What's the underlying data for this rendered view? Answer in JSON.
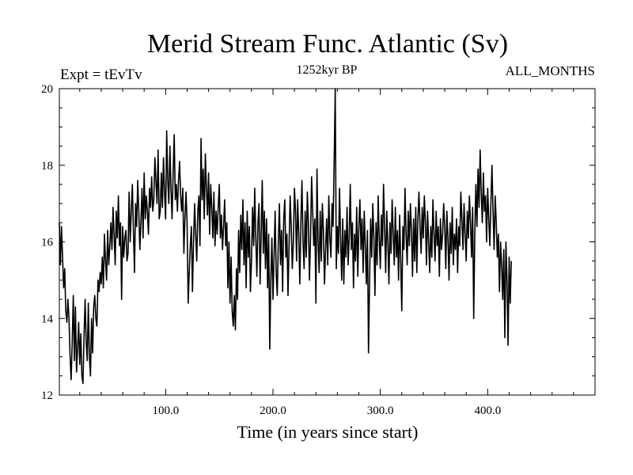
{
  "chart_data": {
    "type": "line",
    "title": "Merid Stream Func. Atlantic (Sv)",
    "subtitle_left": "Expt = tEvTv",
    "subtitle_center": "1252kyr BP",
    "subtitle_right": "ALL_MONTHS",
    "xlabel": "Time (in years since start)",
    "ylabel": "",
    "xlim": [
      1,
      500
    ],
    "ylim": [
      12,
      20
    ],
    "x_ticks": [
      100,
      200,
      300,
      400
    ],
    "x_tick_labels": [
      "100.0",
      "200.0",
      "300.0",
      "400.0"
    ],
    "y_ticks": [
      12,
      14,
      16,
      18,
      20
    ],
    "y_tick_labels": [
      "12",
      "14",
      "16",
      "18",
      "20"
    ],
    "grid": false,
    "series": [
      {
        "name": "Merid Stream Func. Atlantic",
        "x_start": 1,
        "x_step": 1,
        "values": [
          16.5,
          15.4,
          16.4,
          15.6,
          14.8,
          15.3,
          14.2,
          13.9,
          14.5,
          14.0,
          13.0,
          12.4,
          13.4,
          14.6,
          12.9,
          14.3,
          12.6,
          13.2,
          13.9,
          12.8,
          13.6,
          12.5,
          12.3,
          13.5,
          14.5,
          13.4,
          12.9,
          14.4,
          13.0,
          12.5,
          14.0,
          13.1,
          14.3,
          14.6,
          14.0,
          13.8,
          15.0,
          14.7,
          15.2,
          14.9,
          15.6,
          14.8,
          16.2,
          15.5,
          15.0,
          16.3,
          15.4,
          15.9,
          16.5,
          15.8,
          16.9,
          16.2,
          15.4,
          16.8,
          16.1,
          17.2,
          15.9,
          16.5,
          14.5,
          16.4,
          15.6,
          16.1,
          16.3,
          15.5,
          15.7,
          17.3,
          16.0,
          16.8,
          17.5,
          16.3,
          15.2,
          17.0,
          16.4,
          17.6,
          16.8,
          15.8,
          16.5,
          17.4,
          16.1,
          17.8,
          16.6,
          17.2,
          16.8,
          16.2,
          17.4,
          16.9,
          17.7,
          16.8,
          17.1,
          18.2,
          17.6,
          17.0,
          18.4,
          16.6,
          16.8,
          17.8,
          16.9,
          18.2,
          17.3,
          16.6,
          18.9,
          17.6,
          17.0,
          18.5,
          17.4,
          16.6,
          17.8,
          18.8,
          17.1,
          17.5,
          16.8,
          17.6,
          18.1,
          17.2,
          16.8,
          17.4,
          15.7,
          16.6,
          17.3,
          16.5,
          14.4,
          15.2,
          15.9,
          16.4,
          14.7,
          16.0,
          17.0,
          16.2,
          15.5,
          16.8,
          17.2,
          15.9,
          18.7,
          17.1,
          17.9,
          16.6,
          18.3,
          17.4,
          16.7,
          17.8,
          16.2,
          17.5,
          16.9,
          16.1,
          17.3,
          15.9,
          16.8,
          16.2,
          16.9,
          17.5,
          16.1,
          16.7,
          15.8,
          16.4,
          17.1,
          15.9,
          16.5,
          14.8,
          16.0,
          14.4,
          15.6,
          14.2,
          13.8,
          14.6,
          13.7,
          15.3,
          14.5,
          16.3,
          15.2,
          16.7,
          15.8,
          17.1,
          15.4,
          16.5,
          14.8,
          16.8,
          15.6,
          16.4,
          14.7,
          15.5,
          16.9,
          15.9,
          17.4,
          16.1,
          15.1,
          16.5,
          17.0,
          14.9,
          16.2,
          17.6,
          15.7,
          16.8,
          15.3,
          16.6,
          14.8,
          16.2,
          13.2,
          15.0,
          16.1,
          14.5,
          15.6,
          16.8,
          15.2,
          14.6,
          16.0,
          17.0,
          15.4,
          16.3,
          14.7,
          16.6,
          17.1,
          15.6,
          16.2,
          14.6,
          15.9,
          17.2,
          16.4,
          15.3,
          16.0,
          17.4,
          16.8,
          15.5,
          17.1,
          16.2,
          14.9,
          16.5,
          17.6,
          16.0,
          15.3,
          16.8,
          15.6,
          17.3,
          16.5,
          15.0,
          16.1,
          17.7,
          16.8,
          15.9,
          16.6,
          14.4,
          17.9,
          16.0,
          15.2,
          16.8,
          15.5,
          17.0,
          16.3,
          14.9,
          15.8,
          16.6,
          15.4,
          17.2,
          16.1,
          15.6,
          17.0,
          16.4,
          18.1,
          20.0,
          15.3,
          16.4,
          15.7,
          17.4,
          16.1,
          15.0,
          16.6,
          14.9,
          16.3,
          15.6,
          16.9,
          15.4,
          16.1,
          17.5,
          15.8,
          16.5,
          14.8,
          16.2,
          15.5,
          16.9,
          15.1,
          16.4,
          17.1,
          15.8,
          16.6,
          15.2,
          16.8,
          15.9,
          14.9,
          16.3,
          13.1,
          15.0,
          16.6,
          15.6,
          17.0,
          16.1,
          14.6,
          16.5,
          15.4,
          17.2,
          16.1,
          15.3,
          16.7,
          15.9,
          17.5,
          16.4,
          15.2,
          16.8,
          16.0,
          14.9,
          16.5,
          15.7,
          17.1,
          16.2,
          15.4,
          16.9,
          15.6,
          16.3,
          15.0,
          16.7,
          15.5,
          14.2,
          16.4,
          15.8,
          17.4,
          16.2,
          15.4,
          16.8,
          15.9,
          17.0,
          16.3,
          15.1,
          16.6,
          15.5,
          16.9,
          15.2,
          16.6,
          17.3,
          16.4,
          15.7,
          16.9,
          16.1,
          17.2,
          16.5,
          15.4,
          16.8,
          16.0,
          15.2,
          16.4,
          15.6,
          17.1,
          16.2,
          15.5,
          16.8,
          15.9,
          16.4,
          15.1,
          16.6,
          15.8,
          16.2,
          17.0,
          16.4,
          15.3,
          16.8,
          16.1,
          15.0,
          16.5,
          15.7,
          16.9,
          15.4,
          16.2,
          15.8,
          16.6,
          15.2,
          16.4,
          15.9,
          17.3,
          16.6,
          15.8,
          17.0,
          16.2,
          15.5,
          16.8,
          16.1,
          17.2,
          16.5,
          15.6,
          16.9,
          14.0,
          16.2,
          17.5,
          16.4,
          17.9,
          16.9,
          18.4,
          17.3,
          16.5,
          17.8,
          16.8,
          17.2,
          16.0,
          17.4,
          16.6,
          15.9,
          17.0,
          18.0,
          16.8,
          15.8,
          17.2,
          16.5,
          15.6,
          16.2,
          14.7,
          16.0,
          15.4,
          14.5,
          15.8,
          13.5,
          16.0,
          15.0,
          13.3,
          15.6,
          14.4,
          15.5
        ]
      }
    ]
  }
}
